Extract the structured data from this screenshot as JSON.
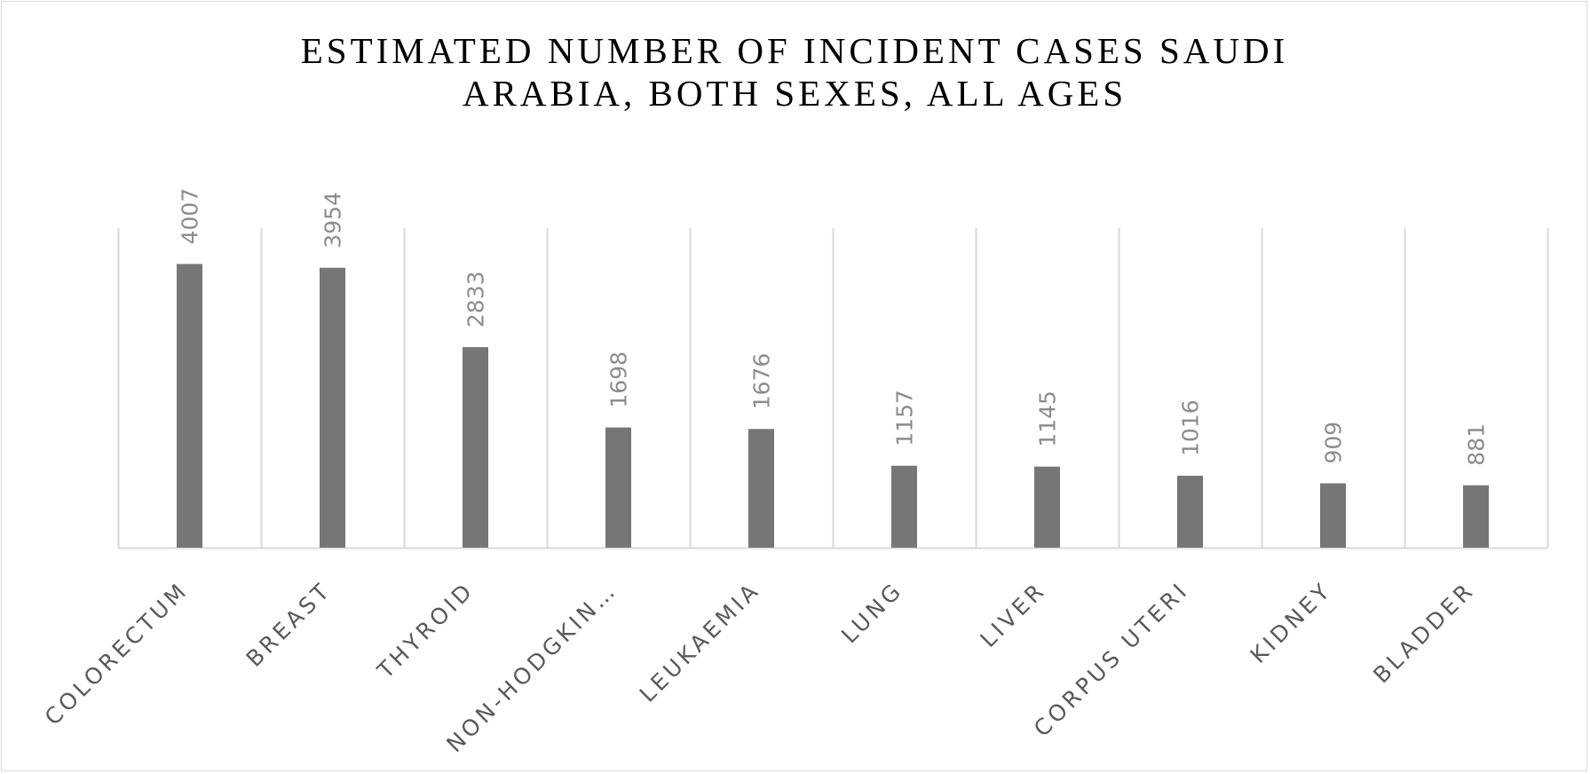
{
  "chart_data": {
    "type": "bar",
    "title_lines": [
      "ESTIMATED NUMBER OF INCIDENT CASES SAUDI",
      "ARABIA, BOTH SEXES, ALL AGES"
    ],
    "categories": [
      "COLORECTUM",
      "BREAST",
      "THYROID",
      "NON-HODGKIN…",
      "LEUKAEMIA",
      "LUNG",
      "LIVER",
      "CORPUS UTERI",
      "KIDNEY",
      "BLADDER"
    ],
    "values": [
      4007,
      3954,
      2833,
      1698,
      1676,
      1157,
      1145,
      1016,
      909,
      881
    ],
    "data_labels": [
      "4007",
      "3954",
      "2833",
      "1698",
      "1676",
      "1157",
      "1145",
      "1016",
      "909",
      "881"
    ],
    "xlabel": "",
    "ylabel": "",
    "ylim": [
      0,
      4500
    ],
    "grid": "vertical category separators",
    "legend": "none",
    "bar_color": "#767676",
    "label_color": "#8c8c8c",
    "category_color": "#595959",
    "gridline_color": "#d9d9d9"
  }
}
